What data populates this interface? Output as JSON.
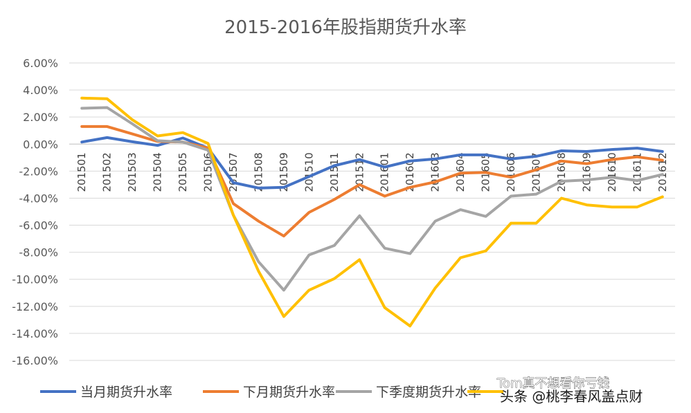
{
  "chart_data": {
    "type": "line",
    "title": "2015-2016年股指期货升水率",
    "xlabel": "",
    "ylabel": "",
    "ylim": [
      -0.16,
      0.06
    ],
    "ytick_labels": [
      "6.00%",
      "4.00%",
      "2.00%",
      "0.00%",
      "-2.00%",
      "-4.00%",
      "-6.00%",
      "-8.00%",
      "-10.00%",
      "-12.00%",
      "-14.00%",
      "-16.00%"
    ],
    "categories": [
      "201501",
      "201502",
      "201503",
      "201504",
      "201505",
      "201506",
      "201507",
      "201508",
      "201509",
      "201510",
      "201511",
      "201512",
      "201601",
      "201602",
      "201603",
      "201604",
      "201605",
      "201606",
      "201607",
      "201608",
      "201609",
      "201610",
      "201611",
      "201612"
    ],
    "grid": true,
    "legend_position": "bottom",
    "series": [
      {
        "name": "当月期货升水率",
        "color": "#4472C4",
        "values": [
          0.0015,
          0.0048,
          0.0017,
          -0.001,
          0.0045,
          -0.003,
          -0.0285,
          -0.0325,
          -0.032,
          -0.024,
          -0.016,
          -0.0115,
          -0.017,
          -0.0125,
          -0.011,
          -0.008,
          -0.008,
          -0.011,
          -0.009,
          -0.005,
          -0.0055,
          -0.004,
          -0.003,
          -0.0055
        ]
      },
      {
        "name": "下月期货升水率",
        "color": "#ED7D31",
        "values": [
          0.013,
          0.013,
          0.0075,
          0.002,
          0.0015,
          -0.003,
          -0.044,
          -0.057,
          -0.068,
          -0.0505,
          -0.041,
          -0.03,
          -0.0385,
          -0.032,
          -0.028,
          -0.0215,
          -0.021,
          -0.0245,
          -0.019,
          -0.0125,
          -0.0145,
          -0.0115,
          -0.0095,
          -0.012
        ]
      },
      {
        "name": "下季度期货升水率",
        "color": "#A5A5A5",
        "values": [
          0.0265,
          0.027,
          0.015,
          0.0025,
          0.0015,
          -0.0045,
          -0.0525,
          -0.087,
          -0.108,
          -0.082,
          -0.075,
          -0.053,
          -0.077,
          -0.081,
          -0.057,
          -0.0485,
          -0.0535,
          -0.0385,
          -0.037,
          -0.0275,
          -0.0265,
          -0.0245,
          -0.027,
          -0.0225
        ]
      },
      {
        "name": "",
        "color": "#FFC000",
        "values": [
          0.034,
          0.0335,
          0.018,
          0.006,
          0.0085,
          0.0005,
          -0.0525,
          -0.094,
          -0.1275,
          -0.108,
          -0.0995,
          -0.0855,
          -0.121,
          -0.1345,
          -0.1065,
          -0.084,
          -0.079,
          -0.0585,
          -0.0585,
          -0.04,
          -0.045,
          -0.0465,
          -0.0465,
          -0.039
        ]
      }
    ]
  },
  "watermark": {
    "line1": "Tom真不想看你亏钱",
    "line2": "头条 @桃李春风盖点财"
  }
}
